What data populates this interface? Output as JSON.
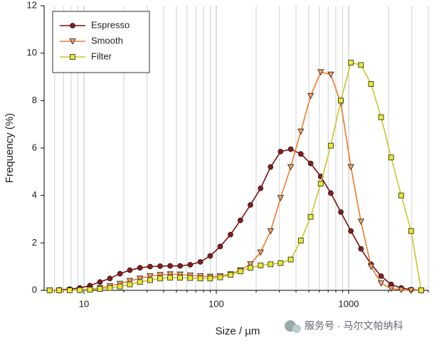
{
  "chart_data": {
    "type": "line",
    "x_label": "Size / µm",
    "y_label": "Frequency (%)",
    "x": [
      5.5,
      6.5,
      7.8,
      9.3,
      11.1,
      13.2,
      15.7,
      18.7,
      22.2,
      26.5,
      31.6,
      37.6,
      44.8,
      53.3,
      63.5,
      75.7,
      89.9,
      107,
      128,
      152,
      181,
      216,
      257,
      306,
      365,
      435,
      516,
      615,
      733,
      873,
      1040,
      1239,
      1476,
      1758,
      2094,
      2495,
      2965,
      3532
    ],
    "series": [
      {
        "name": "Espresso",
        "color": "#7a1010",
        "marker": "circle",
        "marker_fill": "#8b1a1a",
        "values": [
          0,
          0.02,
          0.05,
          0.1,
          0.2,
          0.35,
          0.5,
          0.7,
          0.85,
          0.95,
          1.0,
          1.02,
          1.03,
          1.03,
          1.08,
          1.2,
          1.45,
          1.85,
          2.35,
          2.95,
          3.6,
          4.3,
          5.2,
          5.85,
          5.95,
          5.75,
          5.35,
          4.8,
          4.1,
          3.3,
          2.5,
          1.75,
          1.1,
          0.6,
          0.25,
          0.1,
          0.03,
          0
        ]
      },
      {
        "name": "Smooth",
        "color": "#f07a28",
        "marker": "triangle-down",
        "marker_fill": "#f5a060",
        "values": [
          0,
          0,
          0.01,
          0.02,
          0.05,
          0.1,
          0.18,
          0.28,
          0.4,
          0.5,
          0.6,
          0.65,
          0.68,
          0.67,
          0.63,
          0.6,
          0.58,
          0.6,
          0.68,
          0.85,
          1.1,
          1.6,
          2.5,
          3.9,
          5.2,
          6.7,
          8.2,
          9.2,
          9.1,
          7.9,
          5.2,
          2.9,
          1.0,
          0.3,
          0.08,
          0.02,
          0,
          0
        ]
      },
      {
        "name": "Filter",
        "color": "#c8c828",
        "marker": "square",
        "marker_fill": "#e8e830",
        "values": [
          0,
          0,
          0,
          0.01,
          0.03,
          0.06,
          0.1,
          0.16,
          0.25,
          0.35,
          0.43,
          0.5,
          0.53,
          0.53,
          0.52,
          0.5,
          0.5,
          0.55,
          0.65,
          0.8,
          0.95,
          1.05,
          1.1,
          1.15,
          1.3,
          2.1,
          3.1,
          4.5,
          6.1,
          8.0,
          9.6,
          9.5,
          8.7,
          7.3,
          5.6,
          4.0,
          2.5,
          0
        ]
      }
    ],
    "xlim": [
      5,
      4000
    ],
    "xticks": [
      10,
      100,
      1000
    ],
    "x_log": true,
    "x_minor_ticks": [
      6,
      7,
      8,
      9,
      20,
      30,
      40,
      50,
      60,
      70,
      80,
      90,
      200,
      300,
      400,
      500,
      600,
      700,
      800,
      900,
      2000,
      3000,
      4000
    ],
    "ylim": [
      0,
      12
    ],
    "yticks": [
      0,
      2,
      4,
      6,
      8,
      10,
      12
    ],
    "grid_x": true,
    "legend": "upper-left",
    "watermark": "服务号 · 马尔文帕纳科"
  }
}
